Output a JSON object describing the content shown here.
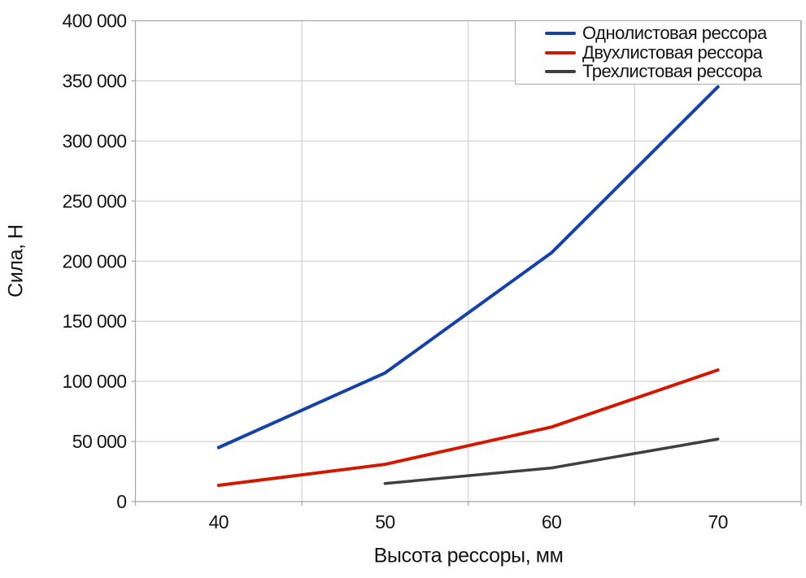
{
  "chart_data": {
    "type": "line",
    "x": [
      40,
      50,
      60,
      70
    ],
    "xlabel": "Высота рессоры, мм",
    "ylabel": "Сила, Н",
    "ylim": [
      0,
      400000
    ],
    "yticks": [
      0,
      50000,
      100000,
      150000,
      200000,
      250000,
      300000,
      350000,
      400000
    ],
    "ytick_format": "space-thousands",
    "grid": true,
    "legend_position": "top-right-inside",
    "series": [
      {
        "name": "Однолистовая рессора",
        "color": "#1641a5",
        "stroke_width": 4,
        "values": [
          45000,
          107000,
          207000,
          345000
        ]
      },
      {
        "name": "Двухлистовая рессора",
        "color": "#d01900",
        "stroke_width": 4,
        "values": [
          13500,
          31000,
          62000,
          109500
        ]
      },
      {
        "name": "Трехлистовая рессора",
        "color": "#3f3f3f",
        "stroke_width": 3.5,
        "values": [
          null,
          15000,
          28000,
          52000
        ]
      }
    ],
    "style": {
      "grid_color": "#c9c9c9",
      "axis_color": "#a8a8a8",
      "text_color": "#141414",
      "background": "#ffffff"
    }
  }
}
